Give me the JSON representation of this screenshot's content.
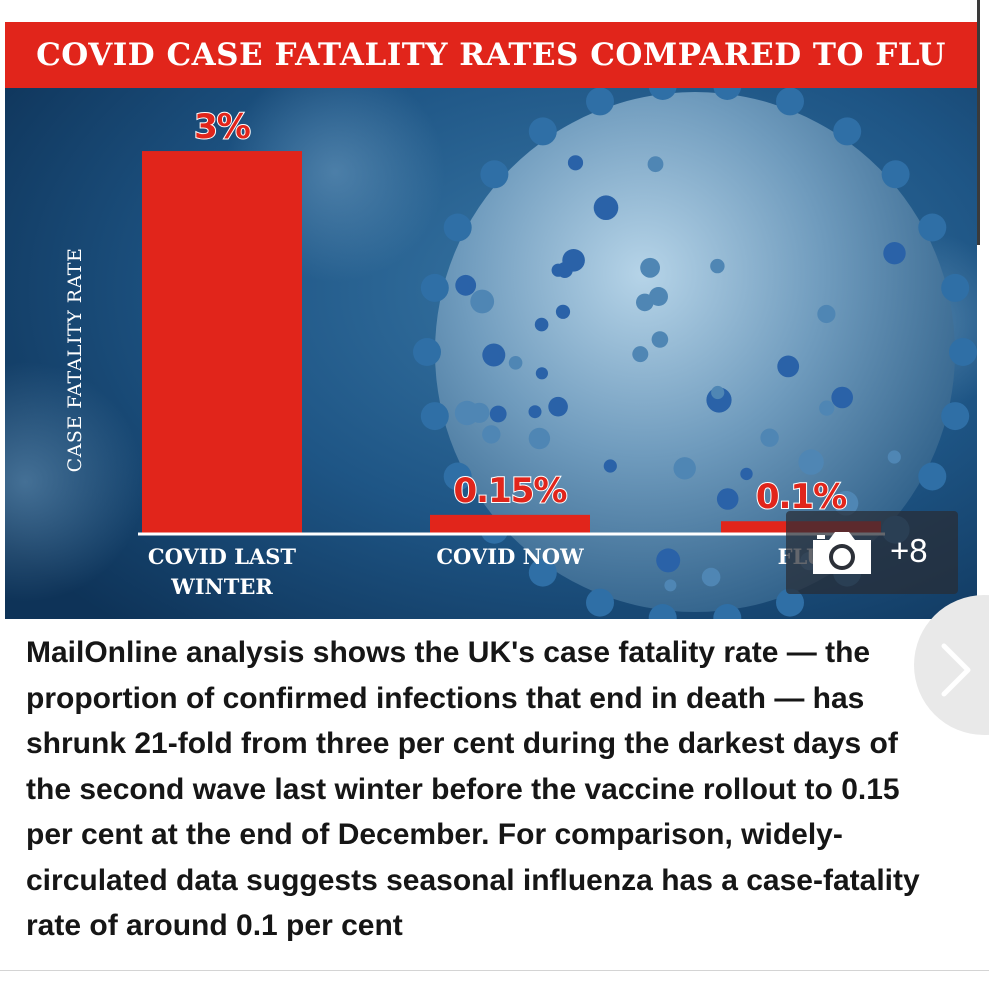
{
  "chart_data": {
    "type": "bar",
    "title": "COVID CASE FATALITY RATES COMPARED TO FLU",
    "ylabel": "CASE FATALITY RATE",
    "xlabel": "",
    "categories": [
      "COVID LAST WINTER",
      "COVID NOW",
      "FLU"
    ],
    "category_lines": [
      [
        "COVID LAST",
        "WINTER"
      ],
      [
        "COVID NOW"
      ],
      [
        "FLU"
      ]
    ],
    "values": [
      3,
      0.15,
      0.1
    ],
    "value_labels": [
      "3%",
      "0.15%",
      "0.1%"
    ],
    "unit": "%",
    "ylim": [
      0,
      3.4
    ],
    "grid": false,
    "colors": {
      "bar": "#e1251b",
      "title_bar": "#e1251b",
      "background": "#1d4f78"
    }
  },
  "gallery": {
    "icon": "camera-icon",
    "count_label": "+8"
  },
  "navigation": {
    "next_icon": "chevron-right-icon"
  },
  "caption": {
    "text": "MailOnline analysis shows the UK's case fatality rate — the proportion of confirmed infections that end in death — has shrunk 21-fold from three per cent during the darkest days of the second wave last winter before the vaccine rollout to 0.15 per cent at the end of December. For comparison, widely-circulated data suggests seasonal influenza has a case-fatality rate of around 0.1 per cent"
  }
}
